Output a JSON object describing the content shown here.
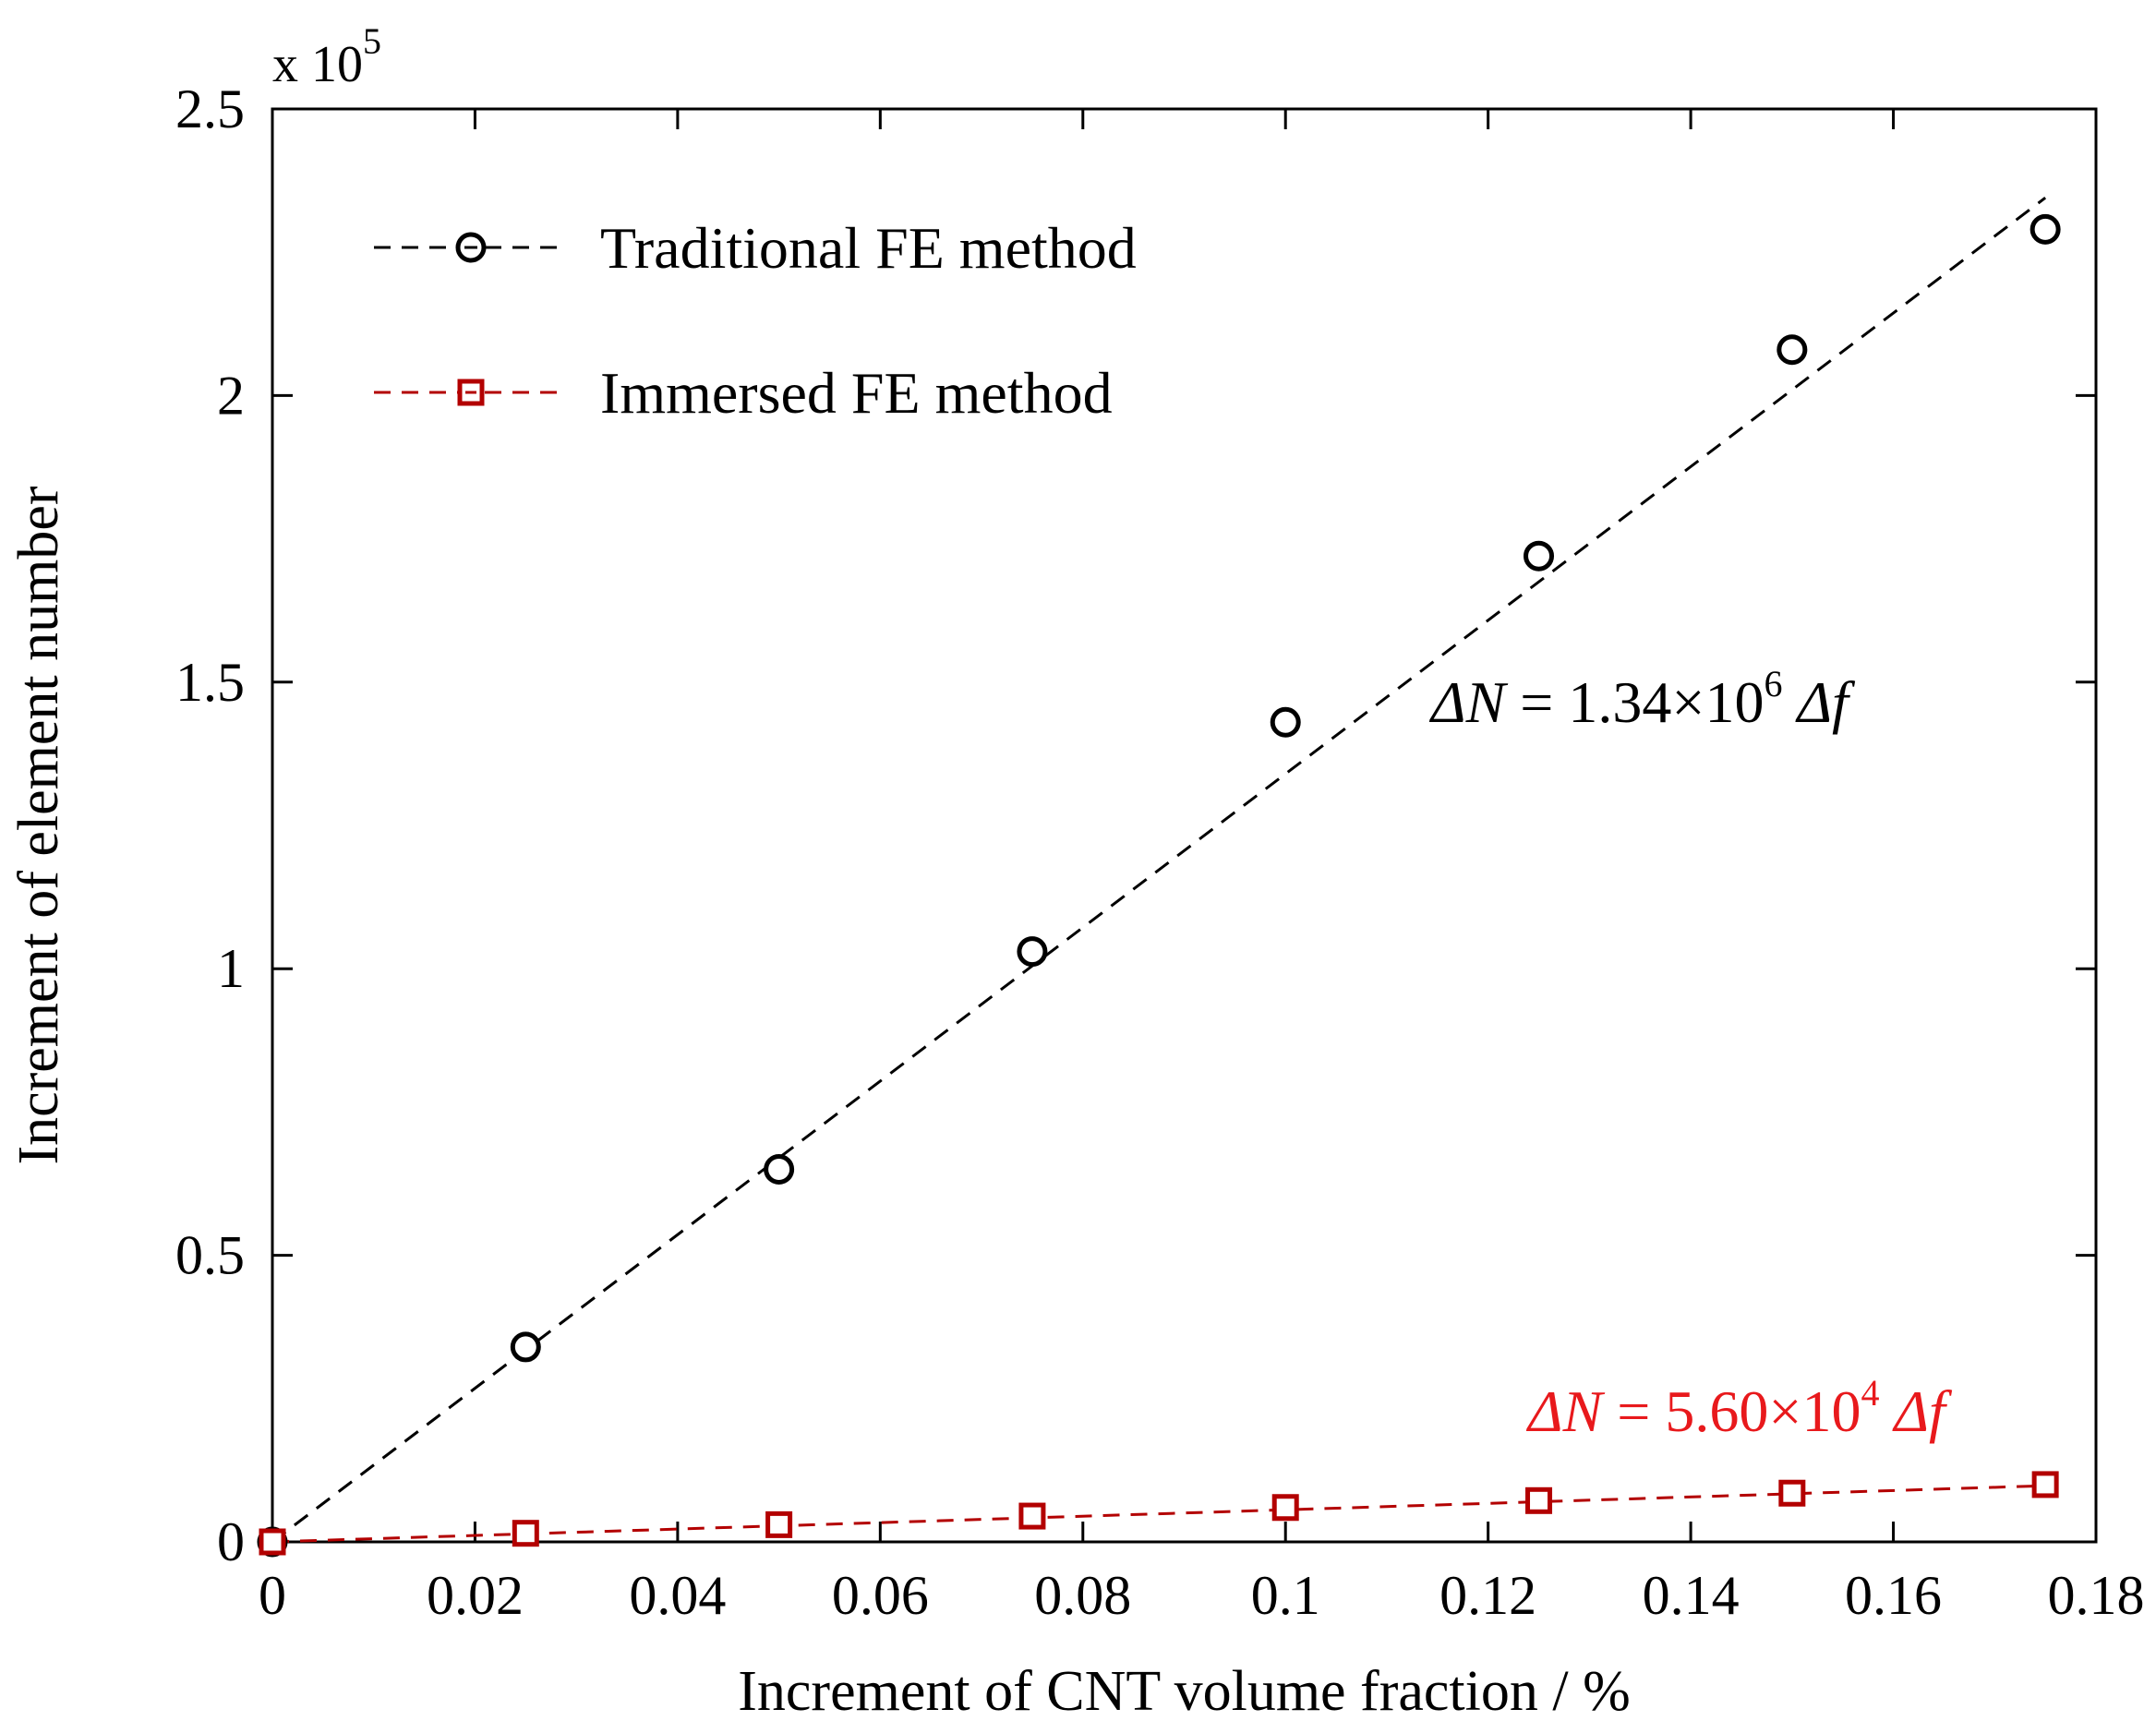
{
  "chart_data": {
    "type": "scatter",
    "xlabel": "Increment of CNT volume fraction / %",
    "ylabel": "Increment of element number",
    "xlim": [
      0,
      0.18
    ],
    "ylim": [
      0,
      2.5
    ],
    "y_multiplier": {
      "base": "x 10",
      "exponent": "5"
    },
    "xticks": [
      0,
      0.02,
      0.04,
      0.06,
      0.08,
      0.1,
      0.12,
      0.14,
      0.16,
      0.18
    ],
    "xtick_labels": [
      "0",
      "0.02",
      "0.04",
      "0.06",
      "0.08",
      "0.1",
      "0.12",
      "0.14",
      "0.16",
      "0.18"
    ],
    "yticks": [
      0,
      0.5,
      1,
      1.5,
      2,
      2.5
    ],
    "ytick_labels": [
      "0",
      "0.5",
      "1",
      "1.5",
      "2",
      "2.5"
    ],
    "grid": false,
    "legend_position": "top-left",
    "series": [
      {
        "name": "Traditional FE method",
        "marker": "circle",
        "color": "#000000",
        "x": [
          0,
          0.025,
          0.05,
          0.075,
          0.1,
          0.125,
          0.15,
          0.175
        ],
        "y": [
          0,
          0.34,
          0.65,
          1.03,
          1.43,
          1.72,
          2.08,
          2.29
        ],
        "fit": {
          "slope": 13.4,
          "x_range": [
            0,
            0.175
          ]
        },
        "equation": {
          "lhs": "ΔN",
          "eq": "=",
          "coef": "1.34",
          "times": "×10",
          "exp": "6",
          "rhs": "Δf"
        }
      },
      {
        "name": "Immersed FE method",
        "marker": "square",
        "color": "#b30000",
        "x": [
          0,
          0.025,
          0.05,
          0.075,
          0.1,
          0.125,
          0.15,
          0.175
        ],
        "y": [
          0,
          0.015,
          0.03,
          0.045,
          0.06,
          0.072,
          0.085,
          0.1
        ],
        "fit": {
          "slope": 0.56,
          "x_range": [
            0,
            0.175
          ]
        },
        "equation": {
          "lhs": "ΔN",
          "eq": "=",
          "coef": "5.60",
          "times": "×10",
          "exp": "4",
          "rhs": "Δf",
          "color": "#e8191c"
        }
      }
    ]
  }
}
